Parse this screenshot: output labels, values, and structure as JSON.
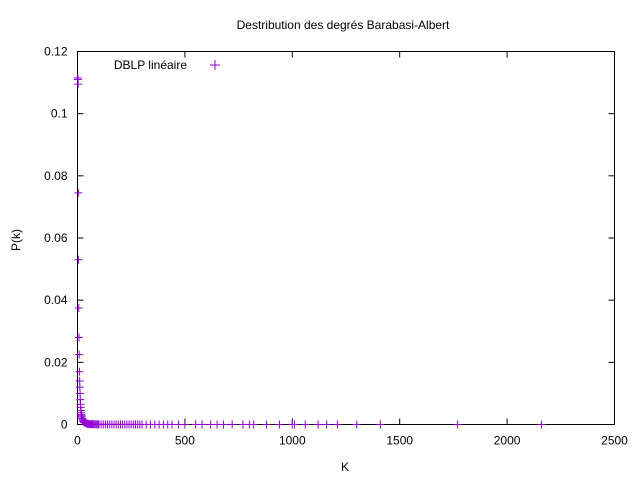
{
  "chart_data": {
    "type": "scatter",
    "title": "Destribution des degrés Barabasi-Albert",
    "xlabel": "K",
    "ylabel": "P(k)",
    "xlim": [
      0,
      2500
    ],
    "ylim": [
      0,
      0.12
    ],
    "x_ticks": [
      "0",
      "500",
      "1000",
      "1500",
      "2000",
      "2500"
    ],
    "y_ticks": [
      "0",
      "0.02",
      "0.04",
      "0.06",
      "0.08",
      "0.1",
      "0.12"
    ],
    "legend_position": "top-left",
    "grid": false,
    "marker": "plus",
    "series_color": "#9400d3",
    "series": [
      {
        "name": "DBLP linéaire",
        "x": [
          1,
          2,
          3,
          4,
          5,
          6,
          7,
          8,
          9,
          10,
          11,
          12,
          13,
          14,
          15,
          16,
          17,
          18,
          19,
          20,
          22,
          24,
          26,
          28,
          30,
          33,
          36,
          40,
          44,
          48,
          52,
          56,
          60,
          65,
          70,
          75,
          80,
          85,
          90,
          95,
          100,
          110,
          120,
          130,
          140,
          150,
          160,
          170,
          180,
          190,
          200,
          210,
          220,
          230,
          240,
          250,
          260,
          270,
          280,
          290,
          300,
          320,
          340,
          360,
          380,
          400,
          420,
          440,
          470,
          500,
          550,
          580,
          620,
          650,
          680,
          720,
          770,
          800,
          820,
          880,
          940,
          1000,
          1010,
          1060,
          1120,
          1160,
          1210,
          1300,
          1410,
          1770,
          2160
        ],
        "y": [
          0.1115,
          0.111,
          0.1095,
          0.0745,
          0.053,
          0.0375,
          0.028,
          0.0225,
          0.017,
          0.014,
          0.012,
          0.01,
          0.008,
          0.0065,
          0.0055,
          0.0045,
          0.0038,
          0.0032,
          0.0028,
          0.0024,
          0.0019,
          0.0015,
          0.0012,
          0.001,
          0.0008,
          0.0006,
          0.0005,
          0.0004,
          0.0003,
          0.0002,
          0.0002,
          0.0001,
          0.0001,
          0.0001,
          0.0001,
          0.0001,
          5e-05,
          5e-05,
          5e-05,
          5e-05,
          5e-05,
          3e-05,
          3e-05,
          3e-05,
          3e-05,
          3e-05,
          2e-05,
          2e-05,
          2e-05,
          2e-05,
          2e-05,
          2e-05,
          2e-05,
          2e-05,
          2e-05,
          2e-05,
          1e-05,
          1e-05,
          1e-05,
          1e-05,
          1e-05,
          1e-05,
          1e-05,
          1e-05,
          1e-05,
          1e-05,
          1e-05,
          1e-05,
          1e-05,
          1e-05,
          1e-05,
          1e-05,
          1e-05,
          1e-05,
          1e-05,
          1e-05,
          1e-05,
          1e-05,
          1e-05,
          1e-05,
          1e-05,
          1e-05,
          1e-05,
          1e-05,
          1e-05,
          1e-05,
          1e-05,
          1e-05,
          1e-05,
          1e-05,
          1e-05
        ]
      }
    ]
  }
}
